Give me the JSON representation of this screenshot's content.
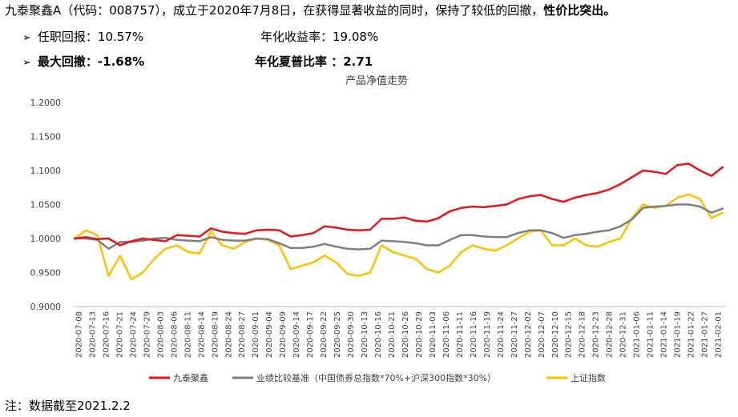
{
  "header": {
    "intro": "九泰聚鑫A（代码：008757），成立于2020年7月8日，在获得显著收益的同时，保持了较低的回撤，",
    "highlight": "性价比突出。"
  },
  "metrics": {
    "tenure_return": "任职回报：10.57%",
    "annualized_return": "年化收益率：19.08%",
    "max_drawdown": "最大回撤：-1.68%",
    "sharpe_ratio": "年化夏普比率 ：2.71"
  },
  "note": "注：数据截至2021.2.2",
  "icons": {
    "bullet": "arrow-right-icon"
  },
  "chart_data": {
    "type": "line",
    "title": "产品净值走势",
    "xlabel": "",
    "ylabel": "",
    "ylim": [
      0.9,
      1.2
    ],
    "yticks": [
      "0.9000",
      "0.9500",
      "1.0000",
      "1.0500",
      "1.1000",
      "1.1500",
      "1.2000"
    ],
    "x_tick_labels": [
      "2020-07-08",
      "2020-07-13",
      "2020-07-16",
      "2020-07-21",
      "2020-07-24",
      "2020-07-29",
      "2020-08-03",
      "2020-08-06",
      "2020-08-11",
      "2020-08-14",
      "2020-08-19",
      "2020-08-24",
      "2020-08-27",
      "2020-09-01",
      "2020-09-04",
      "2020-09-09",
      "2020-09-14",
      "2020-09-17",
      "2020-09-22",
      "2020-09-25",
      "2020-09-30",
      "2020-10-13",
      "2020-10-16",
      "2020-10-21",
      "2020-10-26",
      "2020-10-29",
      "2020-11-03",
      "2020-11-06",
      "2020-11-11",
      "2020-11-16",
      "2020-11-19",
      "2020-11-24",
      "2020-11-27",
      "2020-12-02",
      "2020-12-07",
      "2020-12-10",
      "2020-12-15",
      "2020-12-18",
      "2020-12-23",
      "2020-12-28",
      "2020-12-31",
      "2021-01-06",
      "2021-01-11",
      "2021-01-14",
      "2021-01-19",
      "2021-01-22",
      "2021-01-27",
      "2021-02-01"
    ],
    "grid": false,
    "legend_position": "bottom",
    "series": [
      {
        "name": "九泰聚鑫",
        "color": "#e8141c",
        "values": [
          1.0,
          1.002,
          0.999,
          1.0,
          0.99,
          0.996,
          1.0,
          0.998,
          0.996,
          1.005,
          1.004,
          1.003,
          1.015,
          1.01,
          1.008,
          1.007,
          1.012,
          1.013,
          1.012,
          1.003,
          1.005,
          1.008,
          1.018,
          1.016,
          1.013,
          1.012,
          1.013,
          1.029,
          1.029,
          1.031,
          1.026,
          1.025,
          1.03,
          1.04,
          1.045,
          1.047,
          1.046,
          1.048,
          1.05,
          1.058,
          1.062,
          1.064,
          1.058,
          1.054,
          1.06,
          1.064,
          1.067,
          1.072,
          1.08,
          1.09,
          1.1,
          1.098,
          1.095,
          1.108,
          1.11,
          1.1,
          1.092,
          1.105
        ]
      },
      {
        "name": "业绩比较基准（中国债券总指数*70%+沪深300指数*30%）",
        "color": "#7f7f7f",
        "values": [
          1.0,
          1.0,
          0.998,
          0.985,
          0.995,
          0.995,
          0.997,
          1.0,
          1.001,
          0.998,
          0.997,
          0.996,
          1.002,
          0.998,
          0.997,
          0.997,
          1.0,
          0.999,
          0.993,
          0.986,
          0.986,
          0.988,
          0.992,
          0.988,
          0.985,
          0.984,
          0.985,
          0.997,
          0.996,
          0.995,
          0.993,
          0.99,
          0.99,
          0.998,
          1.005,
          1.005,
          1.003,
          1.002,
          1.002,
          1.008,
          1.012,
          1.012,
          1.008,
          1.001,
          1.005,
          1.007,
          1.01,
          1.012,
          1.018,
          1.028,
          1.045,
          1.047,
          1.048,
          1.05,
          1.05,
          1.047,
          1.038,
          1.044
        ]
      },
      {
        "name": "上证指数",
        "color": "#ffc000",
        "values": [
          1.0,
          1.012,
          1.005,
          0.945,
          0.975,
          0.94,
          0.95,
          0.97,
          0.985,
          0.99,
          0.98,
          0.978,
          1.01,
          0.99,
          0.985,
          0.995,
          1.0,
          0.998,
          0.99,
          0.955,
          0.96,
          0.965,
          0.975,
          0.965,
          0.948,
          0.945,
          0.95,
          0.99,
          0.98,
          0.975,
          0.97,
          0.955,
          0.95,
          0.96,
          0.98,
          0.99,
          0.985,
          0.982,
          0.99,
          1.0,
          1.01,
          1.012,
          0.99,
          0.99,
          1.0,
          0.99,
          0.988,
          0.995,
          1.0,
          1.03,
          1.05,
          1.045,
          1.048,
          1.06,
          1.065,
          1.058,
          1.03,
          1.038
        ]
      }
    ]
  }
}
